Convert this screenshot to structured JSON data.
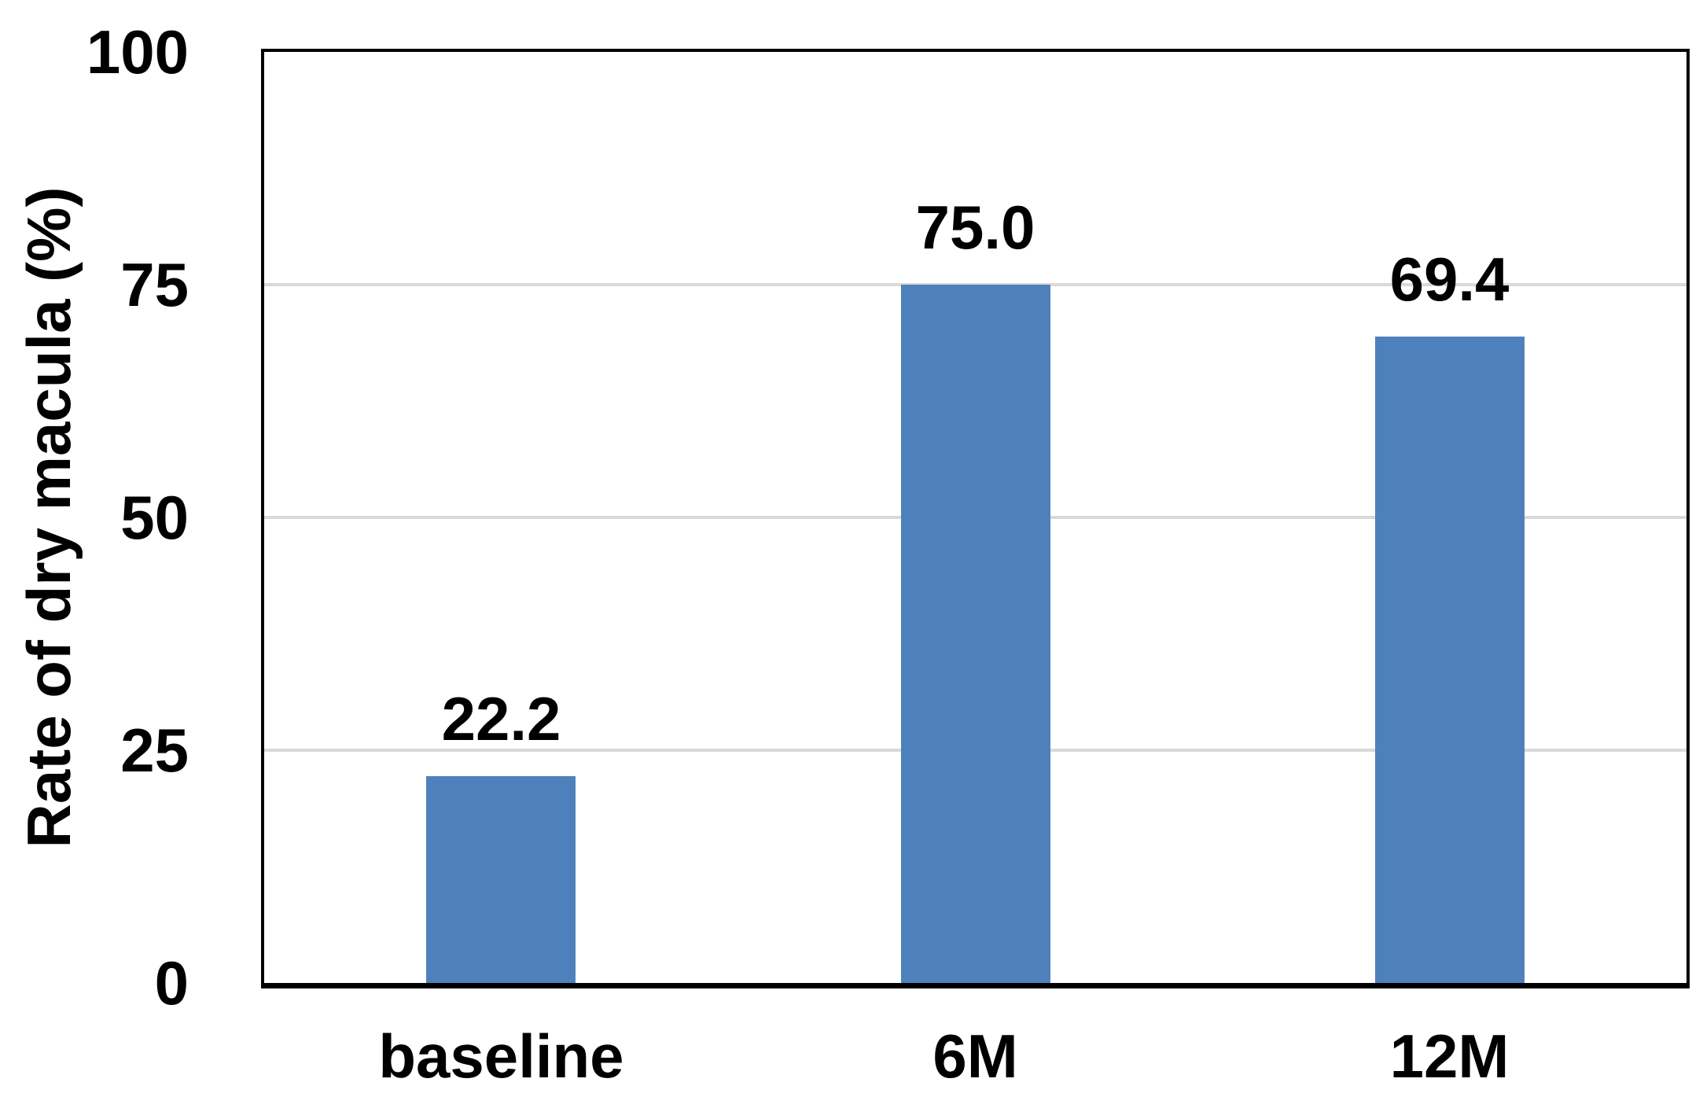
{
  "chart_data": {
    "type": "bar",
    "title": "",
    "categories": [
      "baseline",
      "6M",
      "12M"
    ],
    "values": [
      22.2,
      75.0,
      69.4
    ],
    "value_labels": [
      "22.2",
      "75.0",
      "69.4"
    ],
    "xlabel": "",
    "ylabel": "Rate of dry macula (%)",
    "ylim": [
      0,
      100
    ],
    "yticks": [
      0,
      25,
      50,
      75,
      100
    ],
    "grid": "horizontal gridlines at 25, 50, 75; drawn behind bars",
    "legend": "none",
    "colors": {
      "bar": "#4E81BC",
      "gridline": "#D9D9D9",
      "axis": "#000000",
      "text": "#000000",
      "background": "#FFFFFF"
    }
  }
}
